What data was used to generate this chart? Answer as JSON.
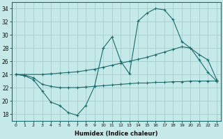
{
  "xlabel": "Humidex (Indice chaleur)",
  "background_color": "#c5e8e8",
  "grid_color": "#a0c8c8",
  "line_color": "#1a6b6b",
  "x_ticks": [
    0,
    1,
    2,
    3,
    4,
    5,
    6,
    7,
    8,
    9,
    10,
    11,
    12,
    13,
    14,
    15,
    16,
    17,
    18,
    19,
    20,
    21,
    22,
    23
  ],
  "ylim": [
    17,
    35
  ],
  "yticks": [
    18,
    20,
    22,
    24,
    26,
    28,
    30,
    32,
    34
  ],
  "xlim": [
    -0.5,
    23.5
  ],
  "curve1_x": [
    0,
    1,
    2,
    3,
    4,
    5,
    6,
    7,
    8,
    9,
    10,
    11,
    12,
    13,
    14,
    15,
    16,
    17,
    18,
    19,
    20,
    21,
    22,
    23
  ],
  "curve1_y": [
    24,
    23.8,
    23.2,
    21.5,
    19.8,
    19.3,
    18.2,
    17.8,
    19.3,
    22.2,
    28,
    29.7,
    26,
    24.1,
    32.1,
    33.3,
    34,
    33.8,
    32.3,
    29,
    28,
    26.2,
    24.3,
    23
  ],
  "curve2_x": [
    0,
    3,
    4,
    5,
    6,
    7,
    8,
    9,
    10,
    11,
    12,
    13,
    14,
    15,
    16,
    17,
    18,
    19,
    20,
    21,
    22,
    23
  ],
  "curve2_y": [
    24,
    24,
    24.1,
    24.2,
    24.3,
    24.4,
    24.6,
    24.8,
    25.1,
    25.4,
    25.7,
    26.0,
    26.3,
    26.6,
    27.0,
    27.4,
    27.8,
    28.2,
    28.0,
    27.0,
    26.2,
    23.2
  ],
  "curve3_x": [
    0,
    1,
    2,
    3,
    4,
    5,
    6,
    7,
    8,
    9,
    10,
    11,
    12,
    13,
    14,
    15,
    16,
    17,
    18,
    19,
    20,
    21,
    22,
    23
  ],
  "curve3_y": [
    24,
    23.9,
    23.5,
    22.5,
    22.2,
    22.0,
    22.0,
    22.0,
    22.1,
    22.2,
    22.3,
    22.4,
    22.5,
    22.6,
    22.7,
    22.7,
    22.8,
    22.8,
    22.9,
    22.9,
    23.0,
    23.0,
    23.0,
    23.0
  ]
}
